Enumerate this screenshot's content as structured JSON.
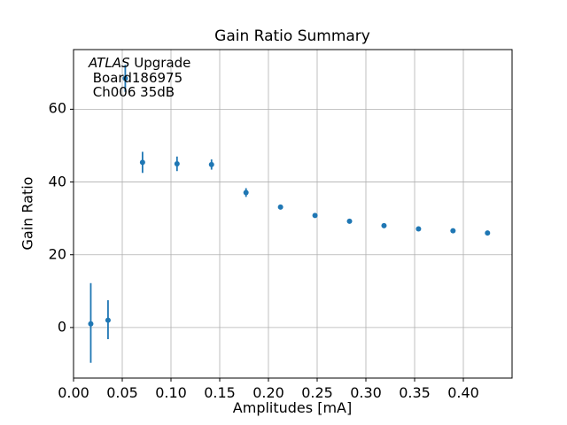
{
  "chart_data": {
    "type": "scatter",
    "title": "Gain Ratio Summary",
    "xlabel": "Amplitudes [mA]",
    "ylabel": "Gain Ratio",
    "xlim": [
      0,
      0.45
    ],
    "ylim": [
      -13.9,
      76.4
    ],
    "grid": true,
    "legend": "none",
    "grid_color": "#b0b0b0",
    "marker_color": "#1f77b4",
    "xticks": {
      "values": [
        0.0,
        0.05,
        0.1,
        0.15,
        0.2,
        0.25,
        0.3,
        0.35,
        0.4
      ],
      "labels": [
        "0.00",
        "0.05",
        "0.10",
        "0.15",
        "0.20",
        "0.25",
        "0.30",
        "0.35",
        "0.40"
      ]
    },
    "yticks": {
      "values": [
        0,
        20,
        40,
        60
      ],
      "labels": [
        "0",
        "20",
        "40",
        "60"
      ]
    },
    "series": [
      {
        "name": "gain-ratio-points",
        "x": [
          0.0177,
          0.0354,
          0.0531,
          0.0708,
          0.1062,
          0.1416,
          0.177,
          0.2124,
          0.2478,
          0.2832,
          0.3186,
          0.354,
          0.3894,
          0.4248
        ],
        "y": [
          1.0,
          2.0,
          68.5,
          45.4,
          45.0,
          44.8,
          37.1,
          33.1,
          30.8,
          29.2,
          28.0,
          27.1,
          26.6,
          26.0
        ],
        "yerr_lo": [
          10.7,
          5.2,
          3.7,
          2.9,
          2.0,
          1.4,
          1.2,
          0.6,
          0.6,
          0.6,
          0.6,
          0.6,
          0.6,
          0.6
        ],
        "yerr_hi": [
          11.2,
          5.5,
          3.7,
          2.9,
          2.0,
          1.4,
          1.2,
          0.6,
          0.6,
          0.6,
          0.6,
          0.6,
          0.6,
          0.6
        ]
      }
    ],
    "annotation": {
      "line1_italic": "ATLAS",
      "line1_rest": " Upgrade",
      "line2": " Board186975",
      "line3": " Ch006 35dB"
    }
  }
}
